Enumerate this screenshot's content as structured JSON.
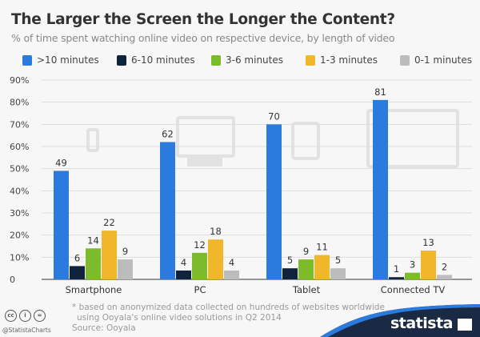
{
  "chart_data": {
    "type": "bar",
    "title": "The Larger the Screen the Longer the Content?",
    "subtitle": "% of time spent watching online video on respective device, by length of video",
    "categories": [
      "Smartphone",
      "PC",
      "Tablet",
      "Connected TV"
    ],
    "series": [
      {
        "name": ">10 minutes",
        "color": "#2b7bde",
        "values": [
          49,
          62,
          70,
          81
        ]
      },
      {
        "name": "6-10 minutes",
        "color": "#10233d",
        "values": [
          6,
          4,
          5,
          1
        ]
      },
      {
        "name": "3-6 minutes",
        "color": "#7cbb2a",
        "values": [
          14,
          12,
          9,
          3
        ]
      },
      {
        "name": "1-3 minutes",
        "color": "#f0b72a",
        "values": [
          22,
          18,
          11,
          13
        ]
      },
      {
        "name": "0-1 minutes",
        "color": "#bcbcbc",
        "values": [
          9,
          4,
          5,
          2
        ]
      }
    ],
    "ylim": [
      0,
      90
    ],
    "yticks": [
      "0",
      "10%",
      "20%",
      "30%",
      "40%",
      "50%",
      "60%",
      "70%",
      "80%",
      "90%"
    ],
    "grid": true,
    "legend": "top"
  },
  "footer": {
    "note_line1": "* based on anonymized data collected on hundreds of websites worldwide",
    "note_line2": "using Ooyala's online video solutions in Q2 2014",
    "source": "Source: Ooyala",
    "handle": "@StatistaCharts",
    "brand": "statista"
  }
}
